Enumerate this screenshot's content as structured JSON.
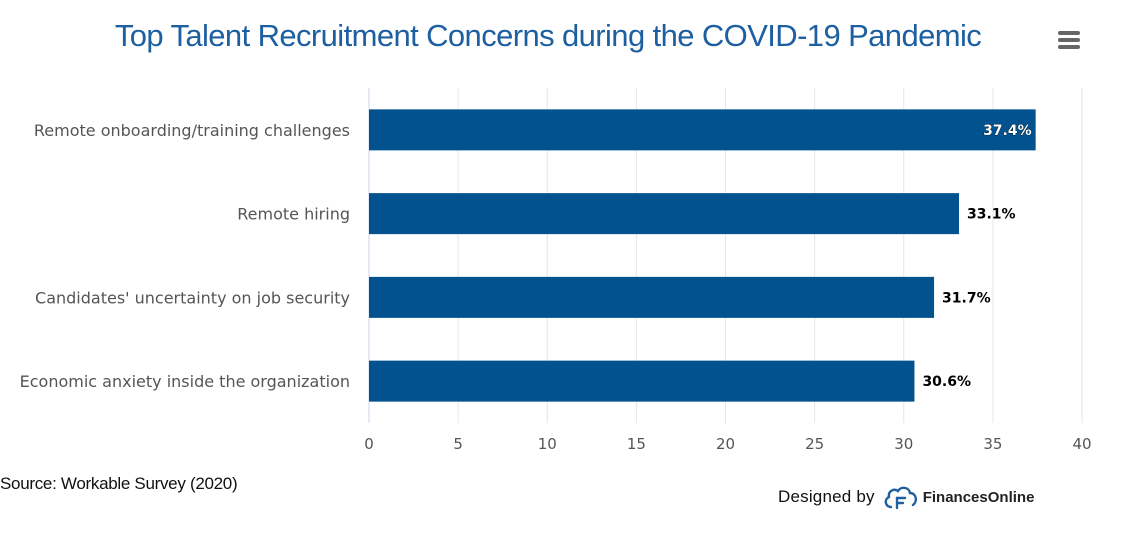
{
  "title": "Top Talent Recruitment Concerns during the COVID-19 Pandemic",
  "menu_icon": "hamburger-menu-icon",
  "source": "Source: Workable Survey (2020)",
  "credit": {
    "designed_by": "Designed by",
    "brand": "FinancesOnline",
    "logo_icon": "financesonline-logo-icon"
  },
  "colors": {
    "bar": "#02528f",
    "title": "#1d5fa0",
    "grid": "#e6e6e6"
  },
  "chart_data": {
    "type": "bar",
    "orientation": "horizontal",
    "categories": [
      "Remote onboarding/training challenges",
      "Remote hiring",
      "Candidates' uncertainty on job security",
      "Economic anxiety inside the organization"
    ],
    "values": [
      37.4,
      33.1,
      31.7,
      30.6
    ],
    "data_labels": [
      "37.4%",
      "33.1%",
      "31.7%",
      "30.6%"
    ],
    "xlim": [
      0,
      40
    ],
    "xticks": [
      0,
      5,
      10,
      15,
      20,
      25,
      30,
      35,
      40
    ],
    "grid": true,
    "legend": false
  }
}
